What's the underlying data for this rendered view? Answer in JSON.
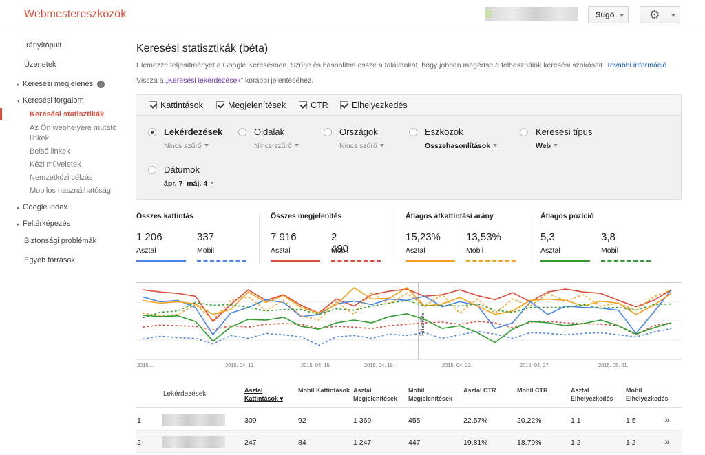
{
  "app": {
    "title": "Webmestereszközök"
  },
  "header": {
    "help_label": "Súgó",
    "settings_icon": "gear-icon"
  },
  "sidebar": {
    "items": [
      {
        "label": "Irányítópult",
        "arrow": ""
      },
      {
        "label": "Üzenetek",
        "arrow": ""
      },
      {
        "label": "Keresési megjelenés",
        "arrow": "▸"
      },
      {
        "label": "Keresési forgalom",
        "arrow": "▾"
      },
      {
        "label": "Keresési statisztikák",
        "arrow": ""
      },
      {
        "label": "Az Ön webhelyére mutató",
        "arrow": ""
      },
      {
        "label": "linkek",
        "arrow": ""
      },
      {
        "label": "Belső linkek",
        "arrow": ""
      },
      {
        "label": "Kézi műveletek",
        "arrow": ""
      },
      {
        "label": "Nemzetközi célzás",
        "arrow": ""
      },
      {
        "label": "Mobilos használhatóság",
        "arrow": ""
      },
      {
        "label": "Google index",
        "arrow": "▸"
      },
      {
        "label": "Feltérképezés",
        "arrow": "▸"
      },
      {
        "label": "Biztonsági problémák",
        "arrow": ""
      },
      {
        "label": "Egyéb források",
        "arrow": ""
      }
    ]
  },
  "page": {
    "title": "Keresési statisztikák (béta)",
    "intro": "Elemezze teljesítményét a Google Keresésben. Szűrje és hasonlítsa össze a találatokat, hogy jobban megértse a felhasználók keresési szokásait.",
    "more_info": "További információ",
    "back_prefix": "Vissza a ",
    "back_link": "„Keresési lekérdezések”",
    "back_suffix": " korábbi jelentéséhez."
  },
  "checkboxes": [
    {
      "label": "Kattintások",
      "checked": true
    },
    {
      "label": "Megjelenítések",
      "checked": true
    },
    {
      "label": "CTR",
      "checked": true
    },
    {
      "label": "Elhelyezkedés",
      "checked": true
    }
  ],
  "dimensions": [
    {
      "label": "Lekérdezések",
      "sub": "Nincs szűrő",
      "selected": true
    },
    {
      "label": "Oldalak",
      "sub": "Nincs szűrő",
      "selected": false
    },
    {
      "label": "Országok",
      "sub": "Nincs szűrő",
      "selected": false
    },
    {
      "label": "Eszközök",
      "sub": "Összehasonlítások",
      "selected": false
    },
    {
      "label": "Keresési típus",
      "sub": "Web",
      "selected": false
    },
    {
      "label": "Dátumok",
      "sub": "ápr. 7–máj. 4",
      "selected": false
    }
  ],
  "metrics": [
    {
      "title": "Összes kattintás",
      "desktop": "1 206",
      "mobile": "337",
      "desktop_label": "Asztal",
      "mobile_label": "Mobil",
      "color": "#4a86e8"
    },
    {
      "title": "Összes megjelenítés",
      "desktop": "7 916",
      "mobile": "2 490",
      "desktop_label": "Asztal",
      "mobile_label": "Mobil",
      "color": "#dd4b39"
    },
    {
      "title": "Átlagos átkattintási arány",
      "desktop": "15,23%",
      "mobile": "13,53%",
      "desktop_label": "Asztal",
      "mobile_label": "Mobil",
      "color": "#f4a11d"
    },
    {
      "title": "Átlagos pozíció",
      "desktop": "5,3",
      "mobile": "3,8",
      "desktop_label": "Asztal",
      "mobile_label": "Mobil",
      "color": "#2e9d2e"
    }
  ],
  "chart_data": {
    "type": "line",
    "annotation": "Frissítés",
    "x_tick_labels": [
      "2015....",
      "2015. 04. 11.",
      "2015. 04. 15.",
      "2015. 04. 19.",
      "2015. 04. 23.",
      "2015. 04. 27.",
      "2015. 05. 01."
    ],
    "series": [
      {
        "color": "#dd4b39",
        "dashed": false,
        "values": [
          0.95,
          0.92,
          0.9,
          0.86,
          0.5,
          0.74,
          0.95,
          0.8,
          0.88,
          0.73,
          0.62,
          0.82,
          0.72,
          0.88,
          0.93,
          0.96,
          0.86,
          0.88,
          0.95,
          0.87,
          0.81,
          0.91,
          0.78,
          0.92,
          0.96,
          0.92,
          0.9,
          0.8,
          0.71,
          0.8,
          0.95
        ]
      },
      {
        "color": "#dd4b39",
        "dashed": true,
        "values": [
          0.42,
          0.45,
          0.44,
          0.43,
          0.38,
          0.44,
          0.42,
          0.46,
          0.47,
          0.46,
          0.4,
          0.43,
          0.42,
          0.4,
          0.44,
          0.46,
          0.48,
          0.49,
          0.46,
          0.5,
          0.48,
          0.41,
          0.49,
          0.5,
          0.48,
          0.47,
          0.46,
          0.44,
          0.31,
          0.44,
          0.48
        ]
      },
      {
        "color": "#4a86e8",
        "dashed": false,
        "values": [
          0.85,
          0.78,
          0.8,
          0.7,
          0.31,
          0.62,
          0.7,
          0.81,
          0.77,
          0.57,
          0.6,
          0.75,
          0.79,
          0.74,
          0.82,
          0.8,
          0.86,
          0.71,
          0.78,
          0.73,
          0.4,
          0.48,
          0.78,
          0.6,
          0.72,
          0.7,
          0.69,
          0.66,
          0.33,
          0.63,
          0.95
        ]
      },
      {
        "color": "#4a86e8",
        "dashed": true,
        "values": [
          0.25,
          0.29,
          0.27,
          0.26,
          0.18,
          0.3,
          0.26,
          0.33,
          0.31,
          0.28,
          0.16,
          0.28,
          0.3,
          0.26,
          0.32,
          0.3,
          0.34,
          0.26,
          0.31,
          0.36,
          0.32,
          0.26,
          0.34,
          0.33,
          0.31,
          0.33,
          0.34,
          0.31,
          0.28,
          0.35,
          0.4
        ]
      },
      {
        "color": "#f4a11d",
        "dashed": false,
        "values": [
          0.8,
          0.76,
          0.78,
          0.75,
          0.6,
          0.67,
          0.92,
          0.77,
          0.87,
          0.7,
          0.62,
          0.74,
          0.98,
          0.82,
          0.83,
          0.98,
          0.72,
          0.75,
          0.84,
          0.72,
          0.6,
          0.65,
          0.8,
          0.82,
          0.8,
          0.72,
          0.79,
          0.76,
          0.6,
          0.73,
          0.9
        ]
      },
      {
        "color": "#f4a11d",
        "dashed": true,
        "values": [
          0.62,
          0.58,
          0.6,
          0.74,
          0.52,
          0.8,
          0.85,
          0.66,
          0.8,
          0.58,
          0.52,
          0.78,
          0.6,
          0.91,
          0.75,
          0.9,
          0.72,
          0.88,
          0.62,
          0.82,
          0.62,
          0.82,
          0.72,
          0.9,
          0.79,
          0.88,
          0.72,
          0.76,
          0.66,
          0.85,
          0.95
        ]
      },
      {
        "color": "#2e9d2e",
        "dashed": false,
        "values": [
          0.59,
          0.57,
          0.58,
          0.5,
          0.22,
          0.42,
          0.53,
          0.52,
          0.56,
          0.43,
          0.39,
          0.48,
          0.52,
          0.48,
          0.57,
          0.61,
          0.53,
          0.4,
          0.44,
          0.34,
          0.2,
          0.39,
          0.5,
          0.48,
          0.44,
          0.47,
          0.52,
          0.44,
          0.32,
          0.41,
          0.48
        ]
      },
      {
        "color": "#2e9d2e",
        "dashed": true,
        "values": [
          0.55,
          0.63,
          0.65,
          0.77,
          0.73,
          0.74,
          0.7,
          0.65,
          0.67,
          0.67,
          0.6,
          0.68,
          0.66,
          0.72,
          0.76,
          0.8,
          0.72,
          0.73,
          0.72,
          0.75,
          0.66,
          0.63,
          0.7,
          0.7,
          0.7,
          0.74,
          0.69,
          0.7,
          0.66,
          0.74,
          0.75
        ]
      }
    ]
  },
  "table": {
    "headers": [
      {
        "label": "Lekérdezések",
        "sorted": false
      },
      {
        "label": "Asztal Kattintások ▾",
        "sorted": true
      },
      {
        "label": "Mobil Kattintások",
        "sorted": false
      },
      {
        "label": "Asztal Megjelenítések",
        "sorted": false
      },
      {
        "label": "Mobil Megjelenítések",
        "sorted": false
      },
      {
        "label": "Asztal CTR",
        "sorted": false
      },
      {
        "label": "Mobil CTR",
        "sorted": false
      },
      {
        "label": "Asztal Elhelyezkedés",
        "sorted": false
      },
      {
        "label": "Mobil Elhelyezkedés",
        "sorted": false
      }
    ],
    "rows": [
      {
        "index": "1",
        "values": [
          "309",
          "92",
          "1 369",
          "455",
          "22,57%",
          "20,22%",
          "1,1",
          "1,5"
        ]
      },
      {
        "index": "2",
        "values": [
          "247",
          "84",
          "1 247",
          "447",
          "19,81%",
          "18,79%",
          "1,2",
          "1,2"
        ]
      }
    ],
    "row_icon": "double-chevron-right-icon"
  }
}
